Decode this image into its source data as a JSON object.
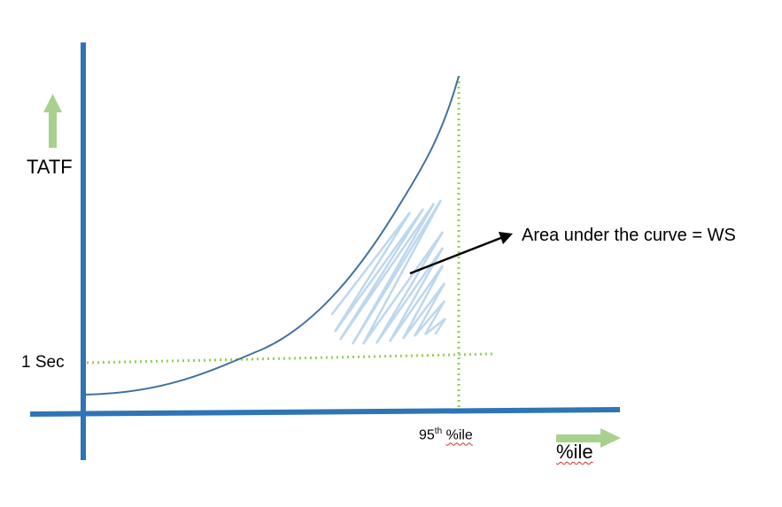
{
  "y_axis": {
    "label": "TATF"
  },
  "x_axis": {
    "label": "%ile"
  },
  "threshold": {
    "label": "1 Sec"
  },
  "percentile_marker": {
    "number": "95",
    "suffix": "th",
    "unit": "%ile"
  },
  "annotation": {
    "text": "Area under the curve = WS"
  },
  "colors": {
    "axis": "#2e75b6",
    "curve": "#41719c",
    "dotted": "#92d050",
    "arrow_green": "#a9d18e",
    "hatch": "#bdd7ee",
    "pointer": "#000000"
  }
}
